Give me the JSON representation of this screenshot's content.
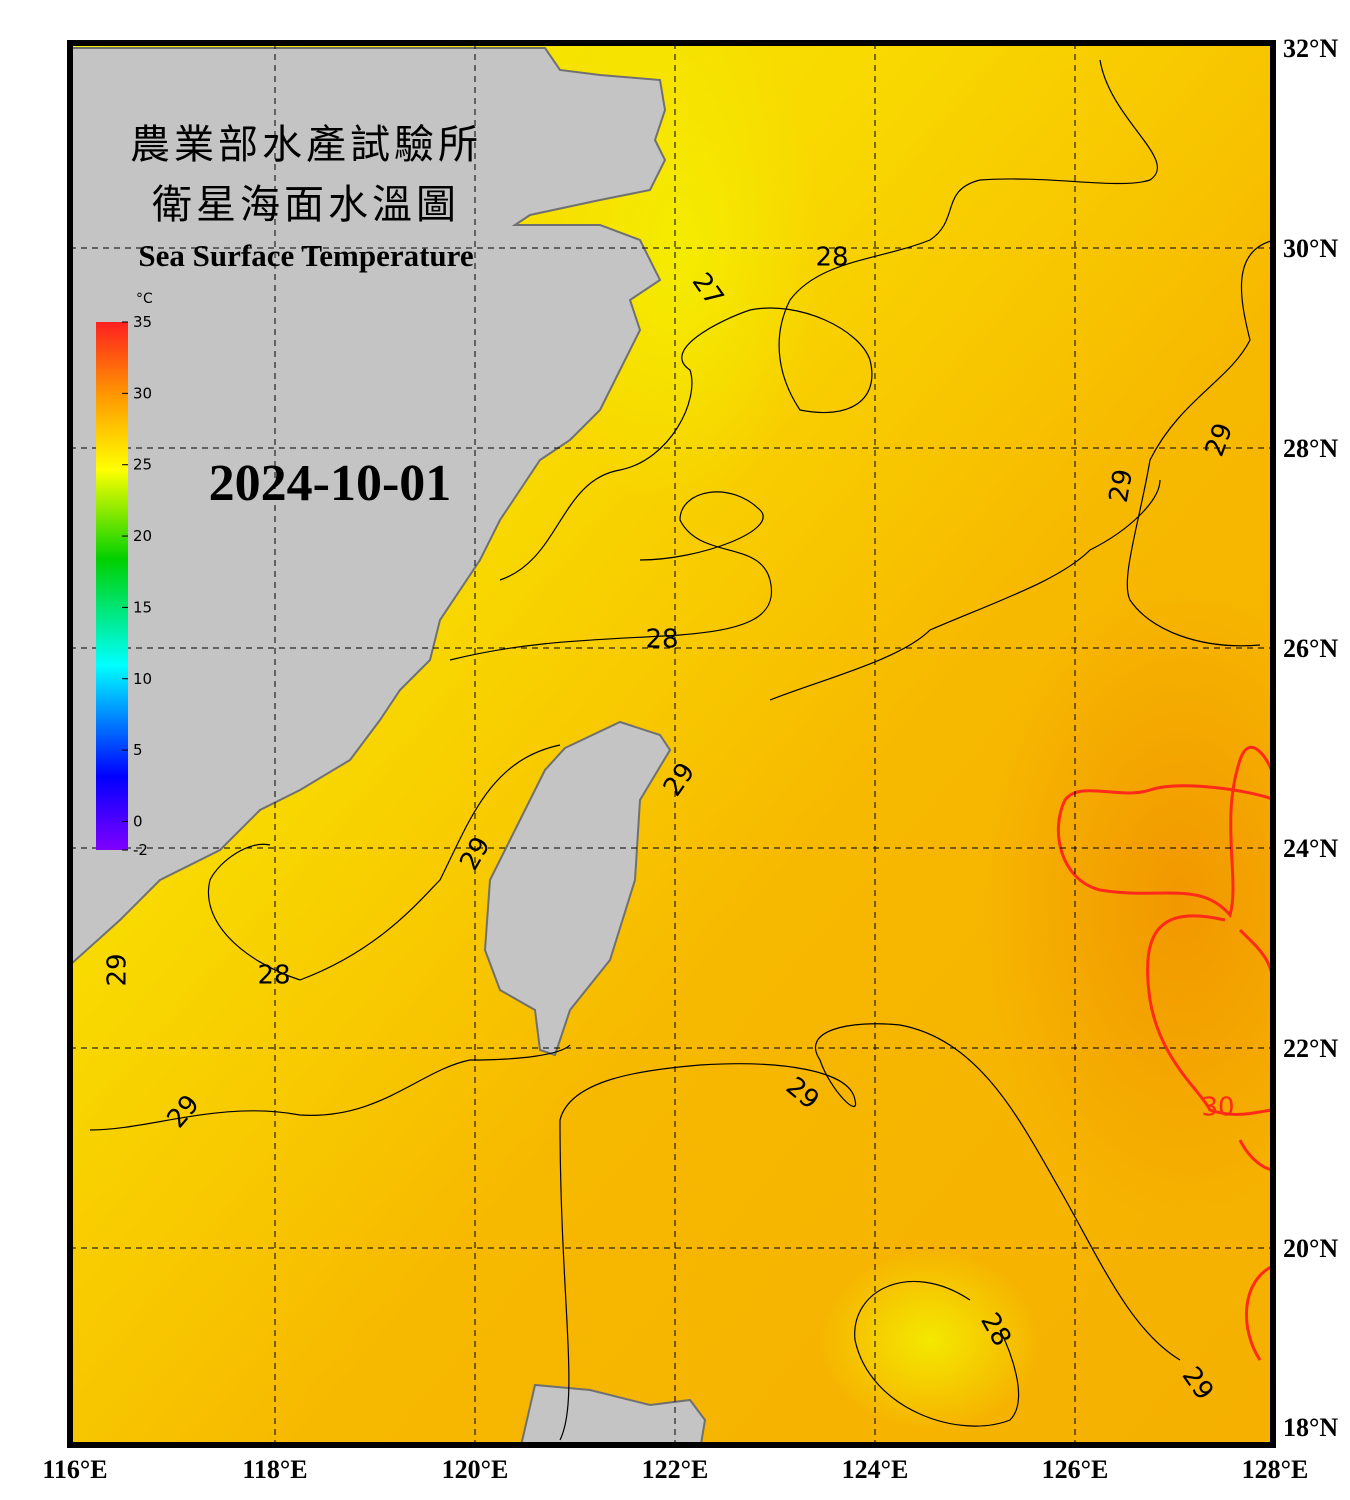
{
  "header": {
    "title_zh_1": "農業部水產試驗所",
    "title_zh_2": "衛星海面水溫圖",
    "title_en": "Sea Surface Temperature",
    "date": "2024-10-01"
  },
  "colorbar": {
    "unit": "°C",
    "ticks": [
      -2,
      0,
      5,
      10,
      15,
      20,
      25,
      30,
      35
    ]
  },
  "axes": {
    "lon": [
      {
        "value": 116,
        "label": "116°E"
      },
      {
        "value": 118,
        "label": "118°E"
      },
      {
        "value": 120,
        "label": "120°E"
      },
      {
        "value": 122,
        "label": "122°E"
      },
      {
        "value": 124,
        "label": "124°E"
      },
      {
        "value": 126,
        "label": "126°E"
      },
      {
        "value": 128,
        "label": "128°E"
      }
    ],
    "lat": [
      {
        "value": 32,
        "label": "32°N"
      },
      {
        "value": 30,
        "label": "30°N"
      },
      {
        "value": 28,
        "label": "28°N"
      },
      {
        "value": 26,
        "label": "26°N"
      },
      {
        "value": 24,
        "label": "24°N"
      },
      {
        "value": 22,
        "label": "22°N"
      },
      {
        "value": 20,
        "label": "20°N"
      },
      {
        "value": 18,
        "label": "18°N"
      }
    ]
  },
  "contour_labels": [
    "27",
    "28",
    "28",
    "28",
    "29",
    "29",
    "29",
    "29",
    "29",
    "29",
    "29",
    "28",
    "29",
    "30"
  ]
}
